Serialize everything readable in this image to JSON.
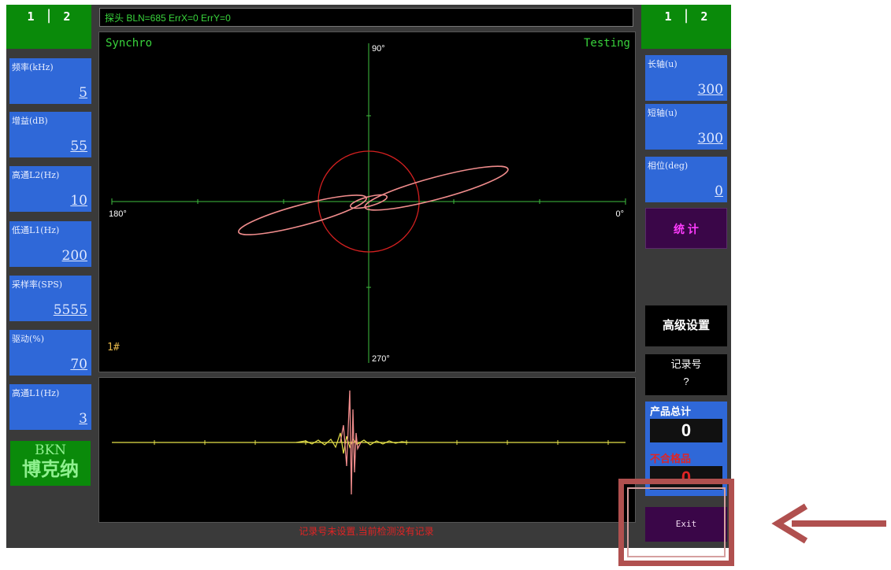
{
  "left_tabs": {
    "tab1": "1",
    "sep": "|",
    "tab2": "2"
  },
  "right_tabs": {
    "tab1": "1",
    "sep": "|",
    "tab2": "2"
  },
  "status_bar": "探头 BLN=685 ErrX=0 ErrY=0",
  "params_left": [
    {
      "label": "频率(kHz)",
      "value": "5"
    },
    {
      "label": "增益(dB)",
      "value": "55"
    },
    {
      "label": "高通L2(Hz)",
      "value": "10"
    },
    {
      "label": "低通L1(Hz)",
      "value": "200"
    },
    {
      "label": "采样率(SPS)",
      "value": "5555"
    },
    {
      "label": "驱动(%)",
      "value": "70"
    },
    {
      "label": "高通L1(Hz)",
      "value": "3"
    }
  ],
  "brand": {
    "line1": "BKN",
    "line2": "博克纳"
  },
  "params_right": [
    {
      "label": "长轴(u)",
      "value": "300"
    },
    {
      "label": "短轴(u)",
      "value": "300"
    },
    {
      "label": "相位(deg)",
      "value": "0"
    }
  ],
  "stats_button": "统 计",
  "advanced_button": "高级设置",
  "record": {
    "label": "记录号",
    "value": "?"
  },
  "product_total": {
    "label": "产品总计",
    "value": "0"
  },
  "defect": {
    "label": "不合格品",
    "value": "0"
  },
  "exit_button": "Exit",
  "scope": {
    "mode": "Synchro",
    "state": "Testing",
    "angle_top": "90°",
    "angle_bottom": "270°",
    "angle_left": "180°",
    "angle_right": "0°",
    "channel": "1#"
  },
  "footer_message": "记录号未设置,当前检测没有记录",
  "colors": {
    "screen_bg": "#000000",
    "param_bg": "#2f68d8",
    "tab_bg": "#0a8a0a",
    "trace": "#f08c8c",
    "signal": "#e6e24a",
    "axis": "#3fbf3f",
    "alert": "#e02424",
    "highlight_box": "#b0504f"
  }
}
